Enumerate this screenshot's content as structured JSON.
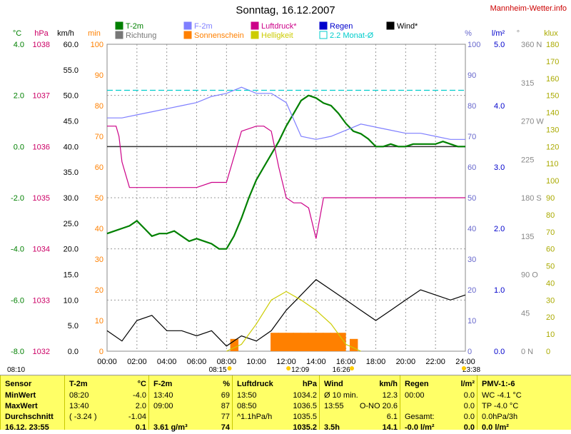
{
  "header": {
    "title": "Sonntag, 16.12.2007",
    "site": "Mannheim-Wetter.info"
  },
  "legend": [
    {
      "label": "T-2m",
      "color": "#008000"
    },
    {
      "label": "F-2m",
      "color": "#7f7fff"
    },
    {
      "label": "Luftdruck*",
      "color": "#cc0088"
    },
    {
      "label": "Regen",
      "color": "#0000cc"
    },
    {
      "label": "Wind*",
      "color": "#000000"
    },
    {
      "label": "Richtung",
      "color": "#777777"
    },
    {
      "label": "Sonnenschein",
      "color": "#ff8000"
    },
    {
      "label": "Helligkeit",
      "color": "#cccc00"
    },
    {
      "label": "2.2 Monat-Ø",
      "color": "#00cccc"
    }
  ],
  "axes": {
    "temp": {
      "unit": "°C",
      "ticks": [
        "4.0",
        "2.0",
        "0.0",
        "-2.0",
        "-4.0",
        "-6.0",
        "-8.0"
      ],
      "color": "#008000"
    },
    "pressure": {
      "unit": "hPa",
      "ticks": [
        "1038",
        "1037",
        "1036",
        "1035",
        "1034",
        "1033",
        "1032"
      ],
      "color": "#cc0066"
    },
    "wind": {
      "unit": "km/h",
      "ticks": [
        "60.0",
        "55.0",
        "50.0",
        "45.0",
        "40.0",
        "35.0",
        "30.0",
        "25.0",
        "20.0",
        "15.0",
        "10.0",
        "5.0",
        "0.0"
      ],
      "color": "#000000"
    },
    "min": {
      "unit": "min",
      "ticks": [
        "100",
        "90",
        "80",
        "70",
        "60",
        "50",
        "40",
        "30",
        "20",
        "10",
        "0"
      ],
      "color": "#ff8000"
    },
    "humidity": {
      "unit": "%",
      "ticks": [
        "100",
        "90",
        "80",
        "70",
        "60",
        "50",
        "40",
        "30",
        "20",
        "10",
        "0"
      ],
      "color": "#6666cc"
    },
    "rain": {
      "unit": "l/m²",
      "ticks": [
        "5.0",
        "4.0",
        "3.0",
        "2.0",
        "1.0",
        "0.0"
      ],
      "color": "#0000cc"
    },
    "direction": {
      "unit": "°",
      "ticks": [
        "360 N",
        "315",
        "270 W",
        "225",
        "180 S",
        "135",
        "90 O",
        "45",
        "0 N"
      ],
      "color": "#888888"
    },
    "lux": {
      "unit": "klux",
      "ticks": [
        "180",
        "170",
        "160",
        "150",
        "140",
        "130",
        "120",
        "110",
        "100",
        "90",
        "80",
        "70",
        "60",
        "50",
        "40",
        "30",
        "20",
        "10",
        "0"
      ],
      "color": "#aaaa00"
    },
    "time": {
      "ticks": [
        "00:00",
        "02:00",
        "04:00",
        "06:00",
        "08:00",
        "10:00",
        "12:00",
        "14:00",
        "16:00",
        "18:00",
        "20:00",
        "22:00",
        "24:00"
      ]
    }
  },
  "markers": {
    "sunrise": "08:10",
    "sun_start": "08:15",
    "noon": "12:09",
    "sun_end": "16:26",
    "sunset": "23:38"
  },
  "chart_data": {
    "type": "line",
    "x_unit": "hour",
    "series": [
      {
        "name": "T-2m",
        "axis": "temp",
        "color": "#008000",
        "x": [
          0,
          0.5,
          1,
          1.5,
          2,
          2.5,
          3,
          3.5,
          4,
          4.5,
          5,
          5.5,
          6,
          6.5,
          7,
          7.5,
          8,
          8.5,
          9,
          9.5,
          10,
          10.5,
          11,
          11.5,
          12,
          12.5,
          13,
          13.5,
          14,
          14.5,
          15,
          15.5,
          16,
          16.5,
          17,
          17.5,
          18,
          18.5,
          19,
          19.5,
          20,
          20.5,
          21,
          21.5,
          22,
          22.5,
          23,
          23.5,
          24
        ],
        "y": [
          -3.4,
          -3.3,
          -3.2,
          -3.1,
          -2.9,
          -3.2,
          -3.5,
          -3.4,
          -3.4,
          -3.3,
          -3.5,
          -3.7,
          -3.6,
          -3.7,
          -3.8,
          -4.0,
          -4.0,
          -3.5,
          -2.8,
          -2.0,
          -1.3,
          -0.8,
          -0.3,
          0.2,
          0.8,
          1.3,
          1.8,
          2.0,
          1.9,
          1.7,
          1.6,
          1.3,
          0.9,
          0.6,
          0.5,
          0.3,
          0.0,
          0.0,
          0.1,
          0.0,
          0.0,
          0.1,
          0.1,
          0.1,
          0.1,
          0.2,
          0.1,
          0.0,
          0.0
        ]
      },
      {
        "name": "F-2m",
        "axis": "humidity",
        "color": "#7f7fff",
        "x": [
          0,
          1,
          2,
          3,
          4,
          5,
          6,
          7,
          8,
          9,
          10,
          11,
          12,
          13,
          14,
          15,
          16,
          17,
          18,
          19,
          20,
          21,
          22,
          23,
          24
        ],
        "y": [
          76,
          76,
          77,
          78,
          79,
          80,
          81,
          83,
          84,
          86,
          84,
          84,
          81,
          70,
          69,
          70,
          72,
          74,
          73,
          72,
          71,
          71,
          70,
          69,
          69
        ]
      },
      {
        "name": "Luftdruck*",
        "axis": "pressure",
        "color": "#cc0088",
        "x": [
          0,
          0.6,
          0.8,
          1,
          1.2,
          1.5,
          2,
          3,
          4,
          5,
          6,
          7,
          8,
          9,
          10,
          10.5,
          11,
          11.5,
          12,
          12.5,
          13,
          13.5,
          14,
          14.5,
          15,
          15.5,
          16,
          17,
          18,
          19,
          20,
          21,
          22,
          23,
          24
        ],
        "y": [
          1036.4,
          1036.4,
          1036.2,
          1035.7,
          1035.5,
          1035.2,
          1035.2,
          1035.2,
          1035.2,
          1035.2,
          1035.2,
          1035.3,
          1035.3,
          1036.3,
          1036.4,
          1036.4,
          1036.3,
          1035.6,
          1035.0,
          1034.9,
          1034.9,
          1034.8,
          1034.2,
          1035.0,
          1035.0,
          1035.0,
          1035.0,
          1035.0,
          1035.0,
          1035.0,
          1035.0,
          1035.0,
          1035.0,
          1035.0,
          1035.0
        ]
      },
      {
        "name": "Wind*",
        "axis": "wind",
        "color": "#000000",
        "x": [
          0,
          1,
          2,
          3,
          4,
          5,
          6,
          7,
          8,
          9,
          10,
          11,
          12,
          13,
          14,
          15,
          16,
          17,
          18,
          19,
          20,
          21,
          22,
          23,
          24
        ],
        "y": [
          4,
          2,
          6,
          7,
          4,
          4,
          3,
          4,
          1,
          3,
          2,
          4,
          8,
          11,
          14,
          12,
          10,
          8,
          6,
          8,
          10,
          12,
          11,
          10,
          11
        ]
      },
      {
        "name": "Helligkeit",
        "axis": "lux",
        "color": "#cccc00",
        "x": [
          8,
          9,
          10,
          11,
          12,
          13,
          14,
          15,
          16,
          17
        ],
        "y": [
          0,
          4,
          16,
          30,
          35,
          30,
          24,
          16,
          4,
          0
        ]
      },
      {
        "name": "2.2 Monat-Ø",
        "axis": "temp",
        "color": "#00cccc",
        "x": [
          0,
          24
        ],
        "y": [
          2.2,
          2.2
        ]
      }
    ],
    "bars": {
      "name": "Sonnenschein",
      "axis": "min",
      "color": "#ff8000",
      "x": [
        8.3,
        11,
        11.5,
        12,
        12.5,
        13,
        13.5,
        14,
        14.5,
        15,
        15.5,
        16.3
      ],
      "y": [
        4,
        6,
        6,
        6,
        6,
        6,
        6,
        6,
        6,
        6,
        6,
        4
      ]
    }
  },
  "table": {
    "columns": [
      {
        "head": [
          "Sensor",
          ""
        ],
        "rows": [
          [
            "MinWert",
            ""
          ],
          [
            "MaxWert",
            ""
          ],
          [
            "Durchschnitt",
            ""
          ],
          [
            "16.12. 23:55",
            ""
          ]
        ]
      },
      {
        "head": [
          "T-2m",
          "°C"
        ],
        "rows": [
          [
            "08:20",
            "-4.0"
          ],
          [
            "13:40",
            "2.0"
          ],
          [
            "( -3.24 )",
            "-1.04"
          ],
          [
            "",
            "0.1"
          ]
        ]
      },
      {
        "head": [
          "F-2m",
          "%"
        ],
        "rows": [
          [
            "13:40",
            "69"
          ],
          [
            "09:00",
            "87"
          ],
          [
            "",
            "77"
          ],
          [
            "3.61 g/m³",
            "74"
          ]
        ]
      },
      {
        "head": [
          "Luftdruck",
          "hPa"
        ],
        "rows": [
          [
            "13:50",
            "1034.2"
          ],
          [
            "08:50",
            "1036.5"
          ],
          [
            "^1.1hPa/h",
            "1035.5"
          ],
          [
            "",
            "1035.2"
          ]
        ]
      },
      {
        "head": [
          "Wind",
          "km/h"
        ],
        "rows": [
          [
            "Ø 10 min.",
            "12.3"
          ],
          [
            "13:55",
            "O-NO 20.6"
          ],
          [
            "",
            "6.1"
          ],
          [
            "3.5h",
            "14.1"
          ]
        ]
      },
      {
        "head": [
          "Regen",
          "l/m²"
        ],
        "rows": [
          [
            "00:00",
            "0.0"
          ],
          [
            "",
            "0.0"
          ],
          [
            "Gesamt:",
            "0.0"
          ],
          [
            "-0.0 l/m²",
            "0.0"
          ]
        ]
      },
      {
        "head": [
          "PMV-1:-6",
          ""
        ],
        "rows": [
          [
            "WC -4.1 °C",
            ""
          ],
          [
            "TP -4.0 °C",
            ""
          ],
          [
            "0.0hPa/3h",
            ""
          ],
          [
            "0.0 l/m²",
            ""
          ]
        ]
      }
    ]
  }
}
